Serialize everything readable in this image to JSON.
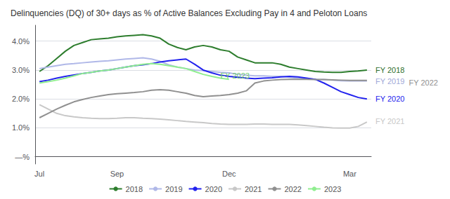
{
  "chart_data": {
    "type": "line",
    "title": "Delinquencies (DQ) of 30+ days as % of Active Balances Excluding Pay in 4 and Peloton Loans",
    "categories": [
      "Jul",
      null,
      null,
      null,
      null,
      null,
      null,
      null,
      null,
      "Sep",
      null,
      null,
      null,
      null,
      null,
      null,
      null,
      null,
      null,
      null,
      null,
      null,
      "Dec",
      null,
      null,
      null,
      null,
      null,
      null,
      null,
      null,
      null,
      null,
      null,
      null,
      null,
      "Mar",
      null,
      null
    ],
    "series": [
      {
        "name": "2018",
        "color": "#2d7d2d",
        "values": [
          2.95,
          3.15,
          3.4,
          3.65,
          3.85,
          3.95,
          4.05,
          4.08,
          4.1,
          4.15,
          4.18,
          4.2,
          4.22,
          4.18,
          4.1,
          3.9,
          3.78,
          3.7,
          3.8,
          3.85,
          3.8,
          3.7,
          3.65,
          3.45,
          3.35,
          3.25,
          3.25,
          3.25,
          3.2,
          3.1,
          3.05,
          3.0,
          2.95,
          2.93,
          2.92,
          2.92,
          2.95,
          2.97,
          3.0
        ]
      },
      {
        "name": "2019",
        "color": "#b0b8e8",
        "values": [
          3.05,
          3.1,
          3.15,
          3.2,
          3.22,
          3.25,
          3.28,
          3.3,
          3.32,
          3.35,
          3.38,
          3.4,
          3.42,
          3.38,
          3.3,
          3.18,
          3.1,
          3.05,
          3.0,
          2.98,
          2.95,
          2.92,
          2.9,
          2.85,
          2.82,
          2.8,
          2.8,
          2.78,
          2.78,
          2.75,
          2.72,
          2.7,
          2.68,
          2.67,
          2.65,
          2.63,
          2.62,
          2.62,
          2.62
        ]
      },
      {
        "name": "2020",
        "color": "#2222ee",
        "values": [
          2.6,
          2.65,
          2.72,
          2.78,
          2.83,
          2.88,
          2.92,
          2.97,
          3.0,
          3.05,
          3.1,
          3.15,
          3.18,
          3.22,
          3.28,
          3.32,
          3.35,
          3.38,
          3.2,
          3.0,
          2.9,
          2.82,
          2.78,
          2.75,
          2.72,
          2.7,
          2.72,
          2.73,
          2.76,
          2.78,
          2.76,
          2.72,
          2.68,
          2.55,
          2.4,
          2.25,
          2.15,
          2.05,
          2.0
        ]
      },
      {
        "name": "2021",
        "color": "#c8c8c8",
        "values": [
          1.8,
          1.65,
          1.5,
          1.42,
          1.38,
          1.35,
          1.33,
          1.32,
          1.32,
          1.33,
          1.35,
          1.35,
          1.33,
          1.32,
          1.3,
          1.28,
          1.25,
          1.22,
          1.2,
          1.18,
          1.15,
          1.13,
          1.12,
          1.12,
          1.12,
          1.13,
          1.13,
          1.12,
          1.12,
          1.12,
          1.1,
          1.08,
          1.05,
          1.02,
          1.0,
          0.99,
          0.99,
          1.05,
          1.2
        ]
      },
      {
        "name": "2022",
        "color": "#909090",
        "values": [
          1.35,
          1.5,
          1.65,
          1.78,
          1.9,
          1.98,
          2.05,
          2.1,
          2.15,
          2.18,
          2.2,
          2.22,
          2.25,
          2.3,
          2.32,
          2.3,
          2.25,
          2.2,
          2.12,
          2.08,
          2.1,
          2.12,
          2.15,
          2.2,
          2.28,
          2.55,
          2.62,
          2.65,
          2.67,
          2.68,
          2.68,
          2.68,
          2.67,
          2.67,
          2.66,
          2.65,
          2.64,
          2.64,
          2.64
        ]
      },
      {
        "name": "2023",
        "color": "#90ee90",
        "values": [
          2.55,
          2.6,
          2.65,
          2.72,
          2.8,
          2.88,
          2.92,
          2.97,
          3.0,
          3.05,
          3.1,
          3.15,
          3.2,
          3.22,
          3.2,
          3.15,
          3.1,
          3.05,
          2.95,
          2.85,
          2.78,
          2.72,
          2.68,
          null,
          null,
          null,
          null,
          null,
          null,
          null,
          null,
          null,
          null,
          null,
          null,
          null,
          null,
          null,
          null
        ]
      }
    ],
    "ylim": [
      -0.25,
      4.55
    ],
    "yticks": [
      {
        "value": 0.0,
        "label": "—%"
      },
      {
        "value": 1.0,
        "label": "1.0%"
      },
      {
        "value": 2.0,
        "label": "2.0%"
      },
      {
        "value": 3.0,
        "label": "3.0%"
      },
      {
        "value": 4.0,
        "label": "4.0%"
      }
    ],
    "grid": true,
    "legend": "bottom",
    "annotations": [
      {
        "text": "FY 2018",
        "y": 3.0,
        "color": "#2d6e2d"
      },
      {
        "text": "FY 2019",
        "y": 2.62,
        "color": "#a0a8d8"
      },
      {
        "text": "FY 2022",
        "y": 2.56,
        "color": "#909090"
      },
      {
        "text": "FY 2020",
        "y": 2.0,
        "color": "#2222ee"
      },
      {
        "text": "FY 2021",
        "y": 1.22,
        "color": "#c8c8c8"
      },
      {
        "text": "FY 2023",
        "x": 21,
        "y": 2.68,
        "color": "#70cc70"
      }
    ]
  }
}
